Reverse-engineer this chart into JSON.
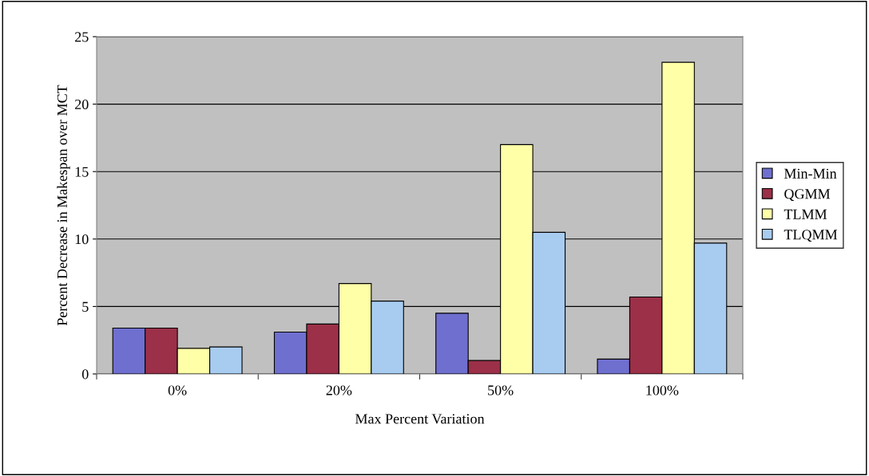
{
  "chart_data": {
    "type": "bar",
    "xlabel": "Max Percent Variation",
    "ylabel": "Percent Decrease in Makespan over MCT",
    "categories": [
      "0%",
      "20%",
      "50%",
      "100%"
    ],
    "series": [
      {
        "name": "Min-Min",
        "color": "#6f6fcf",
        "values": [
          3.4,
          3.1,
          4.5,
          1.1
        ]
      },
      {
        "name": "QGMM",
        "color": "#9b3048",
        "values": [
          3.4,
          3.7,
          1.0,
          5.7
        ]
      },
      {
        "name": "TLMM",
        "color": "#ffffa8",
        "values": [
          1.9,
          6.7,
          17.0,
          23.1
        ]
      },
      {
        "name": "TLQMM",
        "color": "#a8ccf0",
        "values": [
          2.0,
          5.4,
          10.5,
          9.7
        ]
      }
    ],
    "ylim": [
      0,
      25
    ],
    "yticks": [
      0,
      5,
      10,
      15,
      20,
      25
    ],
    "grid": "y",
    "legend": "right"
  }
}
